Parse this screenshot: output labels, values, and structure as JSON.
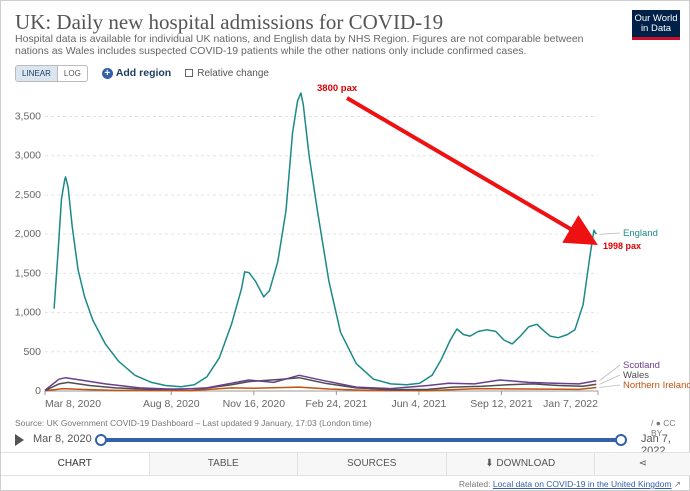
{
  "header": {
    "title": "UK: Daily new hospital admissions for COVID-19",
    "subtitle": "Hospital data is available for individual UK nations, and English data by NHS Region. Figures are not comparable between nations as Wales includes suspected COVID-19 patients while the other nations only include confirmed cases.",
    "logo": "Our World in Data"
  },
  "controls": {
    "linear_label": "LINEAR",
    "log_label": "LOG",
    "add_region_label": "Add region",
    "relative_change_label": "Relative change"
  },
  "chart_data": {
    "type": "line",
    "title": "UK: Daily new hospital admissions for COVID-19",
    "x_ticks": [
      "Mar 8, 2020",
      "Aug 8, 2020",
      "Nov 16, 2020",
      "Feb 24, 2021",
      "Jun 4, 2021",
      "Sep 12, 2021",
      "Jan 7, 2022"
    ],
    "y_ticks": [
      "0",
      "500",
      "1,000",
      "1,500",
      "2,000",
      "2,500",
      "3,000",
      "3,500"
    ],
    "ylim": [
      0,
      3800
    ],
    "grid": true,
    "series": [
      {
        "name": "England",
        "color": "#1a8a87",
        "points": [
          [
            "2020-03-19",
            1050
          ],
          [
            "2020-03-24",
            1800
          ],
          [
            "2020-03-28",
            2450
          ],
          [
            "2020-04-01",
            2700
          ],
          [
            "2020-04-02",
            2730
          ],
          [
            "2020-04-05",
            2600
          ],
          [
            "2020-04-10",
            2100
          ],
          [
            "2020-04-17",
            1550
          ],
          [
            "2020-04-25",
            1200
          ],
          [
            "2020-05-05",
            900
          ],
          [
            "2020-05-20",
            600
          ],
          [
            "2020-06-05",
            380
          ],
          [
            "2020-06-25",
            200
          ],
          [
            "2020-07-15",
            110
          ],
          [
            "2020-08-01",
            70
          ],
          [
            "2020-08-20",
            55
          ],
          [
            "2020-09-05",
            80
          ],
          [
            "2020-09-20",
            180
          ],
          [
            "2020-10-05",
            420
          ],
          [
            "2020-10-20",
            850
          ],
          [
            "2020-11-01",
            1300
          ],
          [
            "2020-11-05",
            1520
          ],
          [
            "2020-11-10",
            1510
          ],
          [
            "2020-11-18",
            1400
          ],
          [
            "2020-11-28",
            1200
          ],
          [
            "2020-12-05",
            1280
          ],
          [
            "2020-12-15",
            1650
          ],
          [
            "2020-12-25",
            2300
          ],
          [
            "2021-01-02",
            3300
          ],
          [
            "2021-01-08",
            3700
          ],
          [
            "2021-01-12",
            3800
          ],
          [
            "2021-01-15",
            3650
          ],
          [
            "2021-01-22",
            3000
          ],
          [
            "2021-02-01",
            2300
          ],
          [
            "2021-02-15",
            1400
          ],
          [
            "2021-03-01",
            750
          ],
          [
            "2021-03-20",
            350
          ],
          [
            "2021-04-10",
            150
          ],
          [
            "2021-05-01",
            90
          ],
          [
            "2021-05-20",
            80
          ],
          [
            "2021-06-05",
            100
          ],
          [
            "2021-06-20",
            200
          ],
          [
            "2021-07-01",
            400
          ],
          [
            "2021-07-12",
            650
          ],
          [
            "2021-07-20",
            790
          ],
          [
            "2021-07-28",
            720
          ],
          [
            "2021-08-05",
            700
          ],
          [
            "2021-08-15",
            760
          ],
          [
            "2021-08-25",
            780
          ],
          [
            "2021-09-05",
            760
          ],
          [
            "2021-09-15",
            650
          ],
          [
            "2021-09-25",
            600
          ],
          [
            "2021-10-05",
            700
          ],
          [
            "2021-10-15",
            820
          ],
          [
            "2021-10-25",
            850
          ],
          [
            "2021-11-01",
            780
          ],
          [
            "2021-11-10",
            700
          ],
          [
            "2021-11-20",
            680
          ],
          [
            "2021-12-01",
            720
          ],
          [
            "2021-12-10",
            780
          ],
          [
            "2021-12-20",
            1100
          ],
          [
            "2021-12-28",
            1700
          ],
          [
            "2022-01-02",
            2050
          ],
          [
            "2022-01-05",
            1998
          ]
        ]
      },
      {
        "name": "Scotland",
        "color": "#6b3d8f",
        "points": [
          [
            "2020-03-08",
            10
          ],
          [
            "2020-03-25",
            150
          ],
          [
            "2020-04-02",
            170
          ],
          [
            "2020-04-20",
            140
          ],
          [
            "2020-05-20",
            90
          ],
          [
            "2020-07-01",
            40
          ],
          [
            "2020-08-15",
            20
          ],
          [
            "2020-09-20",
            40
          ],
          [
            "2020-10-20",
            100
          ],
          [
            "2020-11-10",
            140
          ],
          [
            "2020-12-10",
            110
          ],
          [
            "2021-01-10",
            200
          ],
          [
            "2021-02-10",
            130
          ],
          [
            "2021-03-20",
            50
          ],
          [
            "2021-05-01",
            30
          ],
          [
            "2021-06-15",
            70
          ],
          [
            "2021-07-10",
            100
          ],
          [
            "2021-08-10",
            90
          ],
          [
            "2021-09-10",
            140
          ],
          [
            "2021-10-15",
            110
          ],
          [
            "2021-11-15",
            100
          ],
          [
            "2021-12-15",
            90
          ],
          [
            "2022-01-05",
            130
          ]
        ]
      },
      {
        "name": "Wales",
        "color": "#4d4d4d",
        "points": [
          [
            "2020-03-08",
            5
          ],
          [
            "2020-03-25",
            90
          ],
          [
            "2020-04-05",
            110
          ],
          [
            "2020-05-01",
            70
          ],
          [
            "2020-06-01",
            40
          ],
          [
            "2020-07-15",
            20
          ],
          [
            "2020-09-15",
            30
          ],
          [
            "2020-10-20",
            80
          ],
          [
            "2020-11-10",
            120
          ],
          [
            "2020-12-20",
            150
          ],
          [
            "2021-01-10",
            170
          ],
          [
            "2021-02-10",
            100
          ],
          [
            "2021-03-20",
            40
          ],
          [
            "2021-05-01",
            15
          ],
          [
            "2021-06-15",
            20
          ],
          [
            "2021-07-15",
            50
          ],
          [
            "2021-08-20",
            60
          ],
          [
            "2021-09-20",
            80
          ],
          [
            "2021-10-20",
            90
          ],
          [
            "2021-11-20",
            70
          ],
          [
            "2021-12-20",
            60
          ],
          [
            "2022-01-05",
            85
          ]
        ]
      },
      {
        "name": "Northern Ireland",
        "color": "#c4520f",
        "points": [
          [
            "2020-03-08",
            2
          ],
          [
            "2020-03-30",
            30
          ],
          [
            "2020-04-20",
            20
          ],
          [
            "2020-06-01",
            8
          ],
          [
            "2020-09-01",
            5
          ],
          [
            "2020-10-20",
            40
          ],
          [
            "2020-11-15",
            35
          ],
          [
            "2021-01-10",
            50
          ],
          [
            "2021-02-15",
            25
          ],
          [
            "2021-04-01",
            8
          ],
          [
            "2021-06-15",
            5
          ],
          [
            "2021-08-15",
            30
          ],
          [
            "2021-10-15",
            25
          ],
          [
            "2021-12-15",
            20
          ],
          [
            "2022-01-05",
            45
          ]
        ]
      }
    ],
    "annotations": [
      {
        "text": "3800 pax",
        "color": "#dd0000"
      },
      {
        "text": "1998 pax",
        "color": "#dd0000"
      }
    ]
  },
  "footer": {
    "source": "Source: UK Government COVID-19 Dashboard – Last updated 9 January, 17:03 (London time)",
    "license": "/ ● CC BY",
    "timeline_start": "Mar 8, 2020",
    "timeline_end": "Jan 7, 2022"
  },
  "tabs": [
    {
      "label": "CHART"
    },
    {
      "label": "TABLE"
    },
    {
      "label": "SOURCES"
    },
    {
      "label": "⬇ DOWNLOAD"
    },
    {
      "label": "⋖"
    }
  ],
  "related": {
    "prefix": "Related:",
    "link_text": "Local data on COVID-19 in the United Kingdom",
    "arrow": "↗"
  }
}
